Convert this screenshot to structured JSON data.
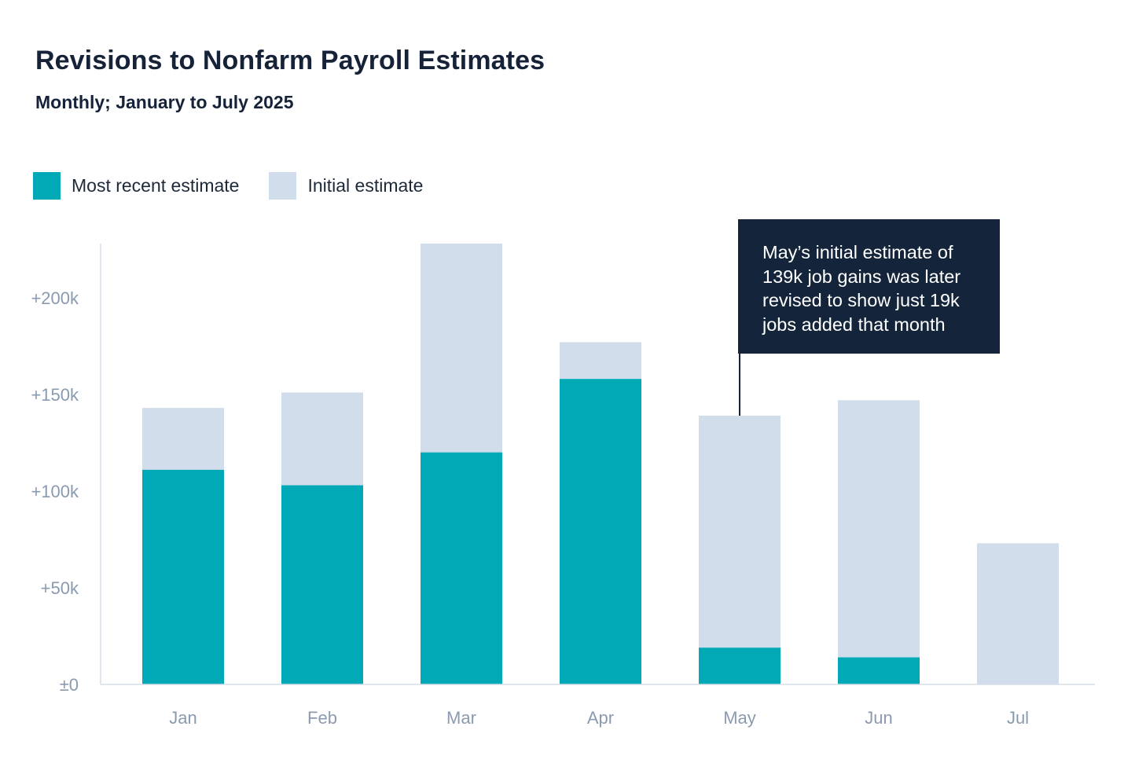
{
  "title": "Revisions to Nonfarm Payroll Estimates",
  "subtitle": "Monthly; January to July 2025",
  "colors": {
    "recent": "#00a9b5",
    "initial": "#d1ddeb",
    "text_dark": "#152238",
    "axis_text": "#8a9bb0",
    "annotation_bg": "#14253b"
  },
  "legend": {
    "recent_label": "Most recent estimate",
    "initial_label": "Initial estimate"
  },
  "annotation": {
    "text": "May’s initial estimate of 139k job gains was later revised to show just 19k jobs added that month",
    "target": "May"
  },
  "chart_data": {
    "type": "bar",
    "layout": "overlaid",
    "categories": [
      "Jan",
      "Feb",
      "Mar",
      "Apr",
      "May",
      "Jun",
      "Jul"
    ],
    "series": [
      {
        "name": "Initial estimate",
        "values": [
          143,
          151,
          228,
          177,
          139,
          147,
          73
        ]
      },
      {
        "name": "Most recent estimate",
        "values": [
          111,
          103,
          120,
          158,
          19,
          14,
          0
        ]
      }
    ],
    "units": "thousands of jobs",
    "yticks": [
      0,
      50,
      100,
      150,
      200
    ],
    "ytick_labels": [
      "±0",
      "+50k",
      "+100k",
      "+150k",
      "+200k"
    ],
    "ylim": [
      0,
      228
    ],
    "grid": false,
    "legend_position": "top-left"
  }
}
